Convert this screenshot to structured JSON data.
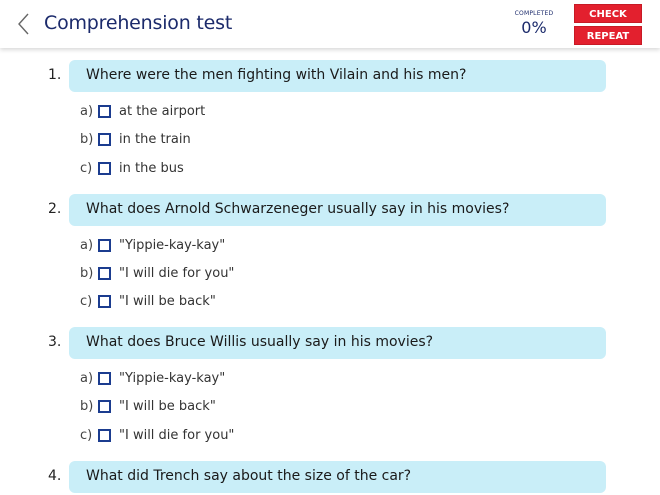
{
  "header": {
    "title": "Comprehension test",
    "completed_label": "COMPLETED",
    "completed_value": "0%",
    "check_label": "CHECK",
    "repeat_label": "REPEAT",
    "back_icon": "chevron-left-icon"
  },
  "colors": {
    "accent": "#e3202e",
    "question_bg": "#c9eef8",
    "title": "#1b2a6b",
    "checkbox": "#1b3c8f"
  },
  "questions": [
    {
      "number": "1.",
      "text": "Where were the men fighting with Vilain and his men?",
      "options": [
        {
          "letter": "a)",
          "text": "at the airport"
        },
        {
          "letter": "b)",
          "text": "in the train"
        },
        {
          "letter": "c)",
          "text": "in the bus"
        }
      ]
    },
    {
      "number": "2.",
      "text": "What does Arnold Schwarzeneger usually say in his movies?",
      "options": [
        {
          "letter": "a)",
          "text": "\"Yippie-kay-kay\""
        },
        {
          "letter": "b)",
          "text": "\"I will die for you\""
        },
        {
          "letter": "c)",
          "text": "\"I will be back\""
        }
      ]
    },
    {
      "number": "3.",
      "text": "What does Bruce Willis usually say in his movies?",
      "options": [
        {
          "letter": "a)",
          "text": "\"Yippie-kay-kay\""
        },
        {
          "letter": "b)",
          "text": "\"I will be back\""
        },
        {
          "letter": "c)",
          "text": "\"I will die for you\""
        }
      ]
    },
    {
      "number": "4.",
      "text": "What did Trench say about the size of the car?",
      "options": []
    }
  ]
}
